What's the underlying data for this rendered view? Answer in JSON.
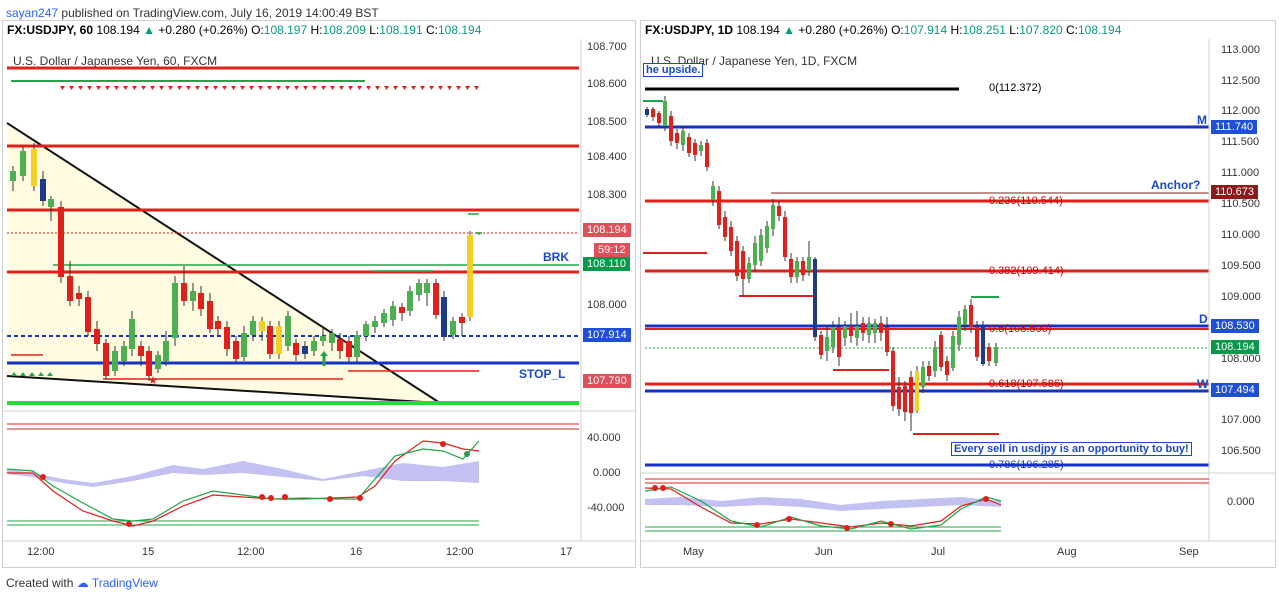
{
  "top": {
    "username": "sayan247",
    "published_text": "published on TradingView.com, July 16, 2019 14:00:49 BST"
  },
  "left": {
    "symbol": "FX:USDJPY, 60",
    "last": "108.194",
    "change_arrow": "▲",
    "change": "+0.280 (+0.26%)",
    "o_label": "O:",
    "o": "108.197",
    "h_label": "H:",
    "h": "108.209",
    "l_label": "L:",
    "l": "108.191",
    "c_label": "C:",
    "c": "108.194",
    "title": "U.S. Dollar / Japanese Yen, 60, FXCM",
    "y_ticks": [
      "108.700",
      "108.600",
      "108.500",
      "108.400",
      "108.300",
      "108.000"
    ],
    "price_tags": {
      "last": "108.194",
      "timer": "59:12",
      "brk": "108.110",
      "stop": "107.790",
      "open": "107.914"
    },
    "annotations": {
      "brk": "BRK",
      "stop": "STOP_L"
    },
    "osc_ticks": [
      "40.000",
      "0.000",
      "-40.000"
    ],
    "x_ticks": [
      "12:00",
      "15",
      "12:00",
      "16",
      "12:00",
      "17"
    ]
  },
  "right": {
    "symbol": "FX:USDJPY, 1D",
    "last": "108.194",
    "change_arrow": "▲",
    "change": "+0.280 (+0.26%)",
    "o_label": "O:",
    "o": "107.914",
    "h_label": "H:",
    "h": "108.251",
    "l_label": "L:",
    "l": "107.820",
    "c_label": "C:",
    "c": "108.194",
    "title": "U.S. Dollar / Japanese Yen, 1D, FXCM",
    "clipped_note": "he upside.",
    "y_ticks": [
      "113.000",
      "112.500",
      "112.000",
      "111.500",
      "111.000",
      "110.500",
      "110.000",
      "109.500",
      "109.000",
      "108.000",
      "107.000",
      "106.500"
    ],
    "price_tags": {
      "m": "111.740",
      "anchor": "110.673",
      "d": "108.530",
      "last": "108.194",
      "w": "107.494"
    },
    "annotations": {
      "m": "M",
      "anchor": "Anchor?",
      "d": "D",
      "w": "W"
    },
    "fib": [
      "0(112.372)",
      "0.236(110.544)",
      "0.382(109.414)",
      "0.5(108.500)",
      "0.618(107.586)",
      "0.786(106.285)"
    ],
    "note": "Every sell in usdjpy is an opportunity to buy!",
    "osc_ticks": [
      "0.000"
    ],
    "x_ticks": [
      "May",
      "Jun",
      "Jul",
      "Aug",
      "Sep"
    ]
  },
  "footer": {
    "created_with": "Created with",
    "brand": "TradingView"
  },
  "colors": {
    "up": "#4caf50",
    "down": "#1e3a8a",
    "red": "#e0201b",
    "blue": "#1431c8",
    "green": "#22c55e",
    "tag_red": "#e0505a",
    "tag_blue": "#1e4fd6",
    "tag_green": "#089a4a",
    "tag_darkred": "#8b1a1a"
  }
}
